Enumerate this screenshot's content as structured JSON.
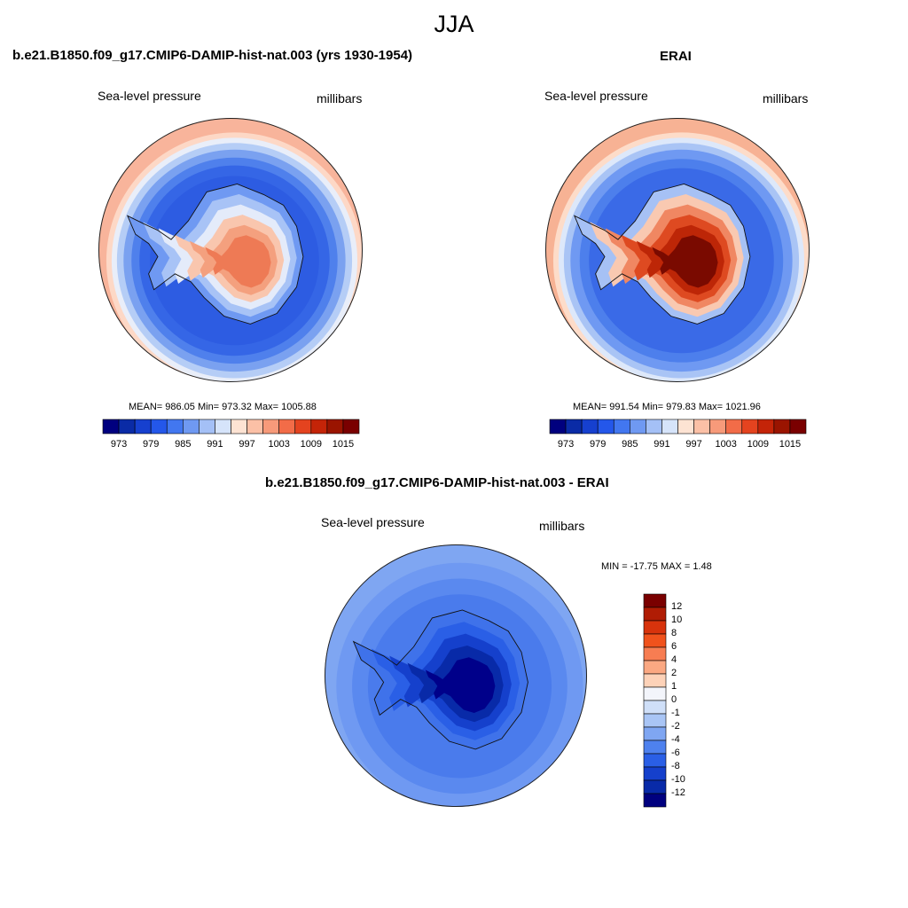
{
  "title": "JJA",
  "panels": [
    {
      "title": "b.e21.B1850.f09_g17.CMIP6-DAMIP-hist-nat.003 (yrs 1930-1954)",
      "variable": "Sea-level pressure",
      "units": "millibars",
      "stats": "MEAN= 986.05  Min= 973.32  Max= 1005.88",
      "colorbar": {
        "colors": [
          "#00007f",
          "#0a2ba6",
          "#1640cf",
          "#2457ea",
          "#4277f0",
          "#6f99f2",
          "#a4c0f6",
          "#d6e4fa",
          "#fde3d3",
          "#fbc0a6",
          "#f79a7a",
          "#f26c48",
          "#e4431f",
          "#c42408",
          "#9a1400",
          "#7a0000"
        ],
        "labels": [
          "973",
          "979",
          "985",
          "991",
          "997",
          "1003",
          "1009",
          "1015"
        ]
      }
    },
    {
      "title": "ERAI",
      "variable": "Sea-level pressure",
      "units": "millibars",
      "stats": "MEAN= 991.54  Min= 979.83  Max= 1021.96",
      "colorbar": {
        "colors": [
          "#00007f",
          "#0a2ba6",
          "#1640cf",
          "#2457ea",
          "#4277f0",
          "#6f99f2",
          "#a4c0f6",
          "#d6e4fa",
          "#fde3d3",
          "#fbc0a6",
          "#f79a7a",
          "#f26c48",
          "#e4431f",
          "#c42408",
          "#9a1400",
          "#7a0000"
        ],
        "labels": [
          "973",
          "979",
          "985",
          "991",
          "997",
          "1003",
          "1009",
          "1015"
        ]
      }
    },
    {
      "title": "b.e21.B1850.f09_g17.CMIP6-DAMIP-hist-nat.003 - ERAI",
      "variable": "Sea-level pressure",
      "units": "millibars",
      "stats": "MIN = -17.75 MAX =   1.48",
      "colorbar": {
        "colors": [
          "#7a0000",
          "#b01c04",
          "#d8330c",
          "#f0521c",
          "#f77d52",
          "#fba882",
          "#fdd2b8",
          "#f3f5fb",
          "#cfdff8",
          "#a9c5f5",
          "#7fa6f2",
          "#4e81ee",
          "#2a5fe6",
          "#1540cc",
          "#082aa8",
          "#00007f"
        ],
        "labels": [
          "12",
          "10",
          "8",
          "6",
          "4",
          "2",
          "1",
          "0",
          "-1",
          "-2",
          "-4",
          "-6",
          "-8",
          "-10",
          "-12"
        ]
      }
    }
  ],
  "maps": {
    "model": {
      "rings": [
        {
          "r": 1.0,
          "color": "#f8b49b"
        },
        {
          "r": 0.97,
          "color": "#fdd8c6"
        },
        {
          "r": 0.93,
          "color": "#e9eef9"
        },
        {
          "r": 0.89,
          "color": "#b5cdf6"
        },
        {
          "r": 0.84,
          "color": "#7aa1f0"
        },
        {
          "r": 0.78,
          "color": "#4f80ec"
        },
        {
          "r": 0.72,
          "color": "#3566e6"
        },
        {
          "r": 0.64,
          "color": "#2d5ce2"
        }
      ],
      "center": {
        "dx": 0.03,
        "dy": 0.08
      },
      "antarctica": [
        "#6f99f2",
        "#a8c3f6",
        "#e4ebfa",
        "#f9c6ae",
        "#f4a07e",
        "#ee7a55"
      ]
    },
    "erai": {
      "rings": [
        {
          "r": 1.0,
          "color": "#f7b294"
        },
        {
          "r": 0.97,
          "color": "#fddcc9"
        },
        {
          "r": 0.93,
          "color": "#dde8fa"
        },
        {
          "r": 0.89,
          "color": "#a9c4f5"
        },
        {
          "r": 0.84,
          "color": "#6f99f2"
        },
        {
          "r": 0.77,
          "color": "#4d7fec"
        },
        {
          "r": 0.7,
          "color": "#3a6ae7"
        }
      ],
      "center": {
        "dx": 0.03,
        "dy": 0.08
      },
      "antarctica": [
        "#a6c1f5",
        "#f9c9b1",
        "#f08762",
        "#de4a21",
        "#bd2607",
        "#7a0a00"
      ]
    },
    "diff": {
      "rings": [
        {
          "r": 1.0,
          "color": "#7fa6f2"
        },
        {
          "r": 0.94,
          "color": "#6f99f2"
        },
        {
          "r": 0.82,
          "color": "#5a89ef"
        },
        {
          "r": 0.7,
          "color": "#4a7bec"
        }
      ],
      "center": {
        "dx": 0.03,
        "dy": 0.08
      },
      "antarctica": [
        "#3f72ea",
        "#2a5fe6",
        "#1540cc",
        "#082aa8",
        "#00008a"
      ]
    }
  }
}
